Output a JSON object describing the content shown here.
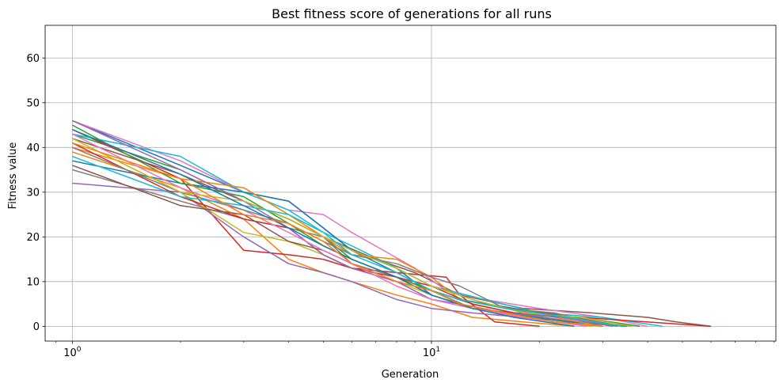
{
  "chart_data": {
    "type": "line",
    "title": "Best fitness score of generations for all runs",
    "xlabel": "Generation",
    "ylabel": "Fitness value",
    "xscale": "log",
    "xlim": [
      0.84,
      91
    ],
    "ylim": [
      -3.3,
      67.3
    ],
    "yticks": [
      0,
      10,
      20,
      30,
      40,
      50,
      60
    ],
    "xticks": [
      {
        "value": 1,
        "base": "10",
        "exp": "0"
      },
      {
        "value": 10,
        "base": "10",
        "exp": "1"
      }
    ],
    "grid": true,
    "palette": [
      "#1f77b4",
      "#ff7f0e",
      "#2ca02c",
      "#d62728",
      "#9467bd",
      "#8c564b",
      "#e377c2",
      "#7f7f7f",
      "#bcbd22",
      "#17becf"
    ],
    "series": [
      {
        "x": [
          1,
          2,
          3,
          4,
          5,
          6,
          8,
          10,
          12,
          16,
          22,
          30
        ],
        "y": [
          46,
          36,
          30,
          28,
          22,
          17,
          12,
          8,
          5,
          3,
          1,
          0
        ]
      },
      {
        "x": [
          1,
          2,
          3,
          4,
          5,
          6,
          8,
          10,
          13,
          18,
          25
        ],
        "y": [
          39,
          31,
          24,
          15,
          12,
          10,
          7,
          5,
          2,
          1,
          0
        ]
      },
      {
        "x": [
          1,
          2,
          3,
          4,
          5,
          6,
          8,
          10,
          12,
          16,
          24,
          34
        ],
        "y": [
          43,
          35,
          28,
          24,
          20,
          15,
          11,
          7,
          5,
          3,
          2,
          0
        ]
      },
      {
        "x": [
          1,
          2,
          3,
          4,
          5,
          6,
          8,
          11,
          12,
          15,
          20
        ],
        "y": [
          44,
          33,
          17,
          16,
          15,
          13,
          12,
          11,
          7,
          1,
          0
        ]
      },
      {
        "x": [
          1,
          2,
          3,
          4,
          5,
          6,
          8,
          10,
          13,
          18,
          26,
          36
        ],
        "y": [
          32,
          30,
          20,
          14,
          12,
          10,
          6,
          4,
          3,
          2,
          1,
          0
        ]
      },
      {
        "x": [
          1,
          2,
          3,
          4,
          5,
          7,
          9,
          12,
          18,
          28,
          40,
          48,
          60
        ],
        "y": [
          42,
          34,
          28,
          24,
          20,
          15,
          12,
          7,
          4,
          3,
          2,
          1,
          0
        ]
      },
      {
        "x": [
          1,
          2,
          3,
          4,
          5,
          6,
          9,
          11,
          14,
          20,
          30,
          40
        ],
        "y": [
          46,
          37,
          30,
          26,
          25,
          21,
          13,
          8,
          6,
          4,
          2,
          0
        ]
      },
      {
        "x": [
          1,
          2,
          3,
          4,
          5,
          6,
          8,
          10,
          13,
          17,
          25,
          33
        ],
        "y": [
          35,
          28,
          24,
          22,
          20,
          14,
          11,
          8,
          4,
          3,
          1,
          0
        ]
      },
      {
        "x": [
          1,
          2,
          3,
          4,
          5,
          6,
          8,
          10,
          13,
          18,
          28
        ],
        "y": [
          42,
          30,
          21,
          19,
          16,
          13,
          10,
          7,
          4,
          2,
          0
        ]
      },
      {
        "x": [
          1,
          2,
          3,
          4,
          5,
          6,
          8,
          10,
          14,
          20,
          30,
          44
        ],
        "y": [
          43,
          38,
          30,
          26,
          21,
          18,
          13,
          9,
          6,
          3,
          2,
          0
        ]
      },
      {
        "x": [
          1,
          2,
          3,
          4,
          5,
          6,
          8,
          10,
          12,
          16,
          24,
          35
        ],
        "y": [
          37,
          32,
          30,
          28,
          22,
          17,
          13,
          7,
          5,
          3,
          1,
          0
        ]
      },
      {
        "x": [
          1,
          2,
          3,
          4,
          5,
          6,
          8,
          10,
          12,
          16,
          22,
          30
        ],
        "y": [
          40,
          33,
          31,
          25,
          20,
          16,
          15,
          11,
          6,
          4,
          2,
          0
        ]
      },
      {
        "x": [
          1,
          2,
          3,
          4,
          5,
          6,
          8,
          10,
          13,
          17,
          26,
          38
        ],
        "y": [
          45,
          32,
          29,
          23,
          18,
          15,
          11,
          8,
          5,
          3,
          2,
          0
        ]
      },
      {
        "x": [
          1,
          2,
          3,
          4,
          5,
          6,
          8,
          10,
          13,
          17,
          26,
          60
        ],
        "y": [
          41,
          29,
          24,
          22,
          16,
          13,
          11,
          9,
          5,
          3,
          2,
          0
        ]
      },
      {
        "x": [
          1,
          2,
          3,
          4,
          5,
          6,
          8,
          10,
          12,
          16,
          23,
          32
        ],
        "y": [
          46,
          35,
          28,
          22,
          16,
          13,
          10,
          6,
          5,
          3,
          2,
          0
        ]
      },
      {
        "x": [
          1,
          2,
          3,
          4,
          5,
          6,
          8,
          10,
          12,
          17,
          25,
          34
        ],
        "y": [
          36,
          27,
          25,
          19,
          17,
          14,
          10,
          8,
          6,
          4,
          2,
          0
        ]
      },
      {
        "x": [
          1,
          2,
          3,
          4,
          5,
          6,
          8,
          10,
          13,
          18,
          27
        ],
        "y": [
          43,
          31,
          26,
          21,
          17,
          14,
          9,
          6,
          4,
          2,
          0
        ]
      },
      {
        "x": [
          1,
          2,
          3,
          4,
          5,
          6,
          8,
          10,
          12,
          16,
          22,
          32
        ],
        "y": [
          40,
          30,
          26,
          23,
          19,
          16,
          14,
          11,
          9,
          4,
          3,
          0
        ]
      },
      {
        "x": [
          1,
          2,
          3,
          4,
          5,
          6,
          8,
          10,
          13,
          18,
          26,
          36
        ],
        "y": [
          42,
          30,
          28,
          24,
          20,
          17,
          13,
          9,
          6,
          3,
          2,
          0
        ]
      },
      {
        "x": [
          1,
          2,
          3,
          4,
          5,
          6,
          8,
          10,
          12,
          16,
          24,
          34
        ],
        "y": [
          38,
          29,
          27,
          25,
          21,
          16,
          12,
          8,
          6,
          4,
          2,
          0
        ]
      },
      {
        "x": [
          1,
          2,
          3,
          4,
          5,
          6,
          8,
          10,
          13,
          17,
          25
        ],
        "y": [
          44,
          34,
          27,
          22,
          18,
          15,
          11,
          7,
          4,
          2,
          0
        ]
      },
      {
        "x": [
          1,
          2,
          3,
          4,
          5,
          6,
          8,
          10,
          12,
          16,
          22,
          30
        ],
        "y": [
          41,
          33,
          25,
          23,
          19,
          14,
          10,
          8,
          5,
          3,
          1,
          0
        ]
      }
    ]
  }
}
